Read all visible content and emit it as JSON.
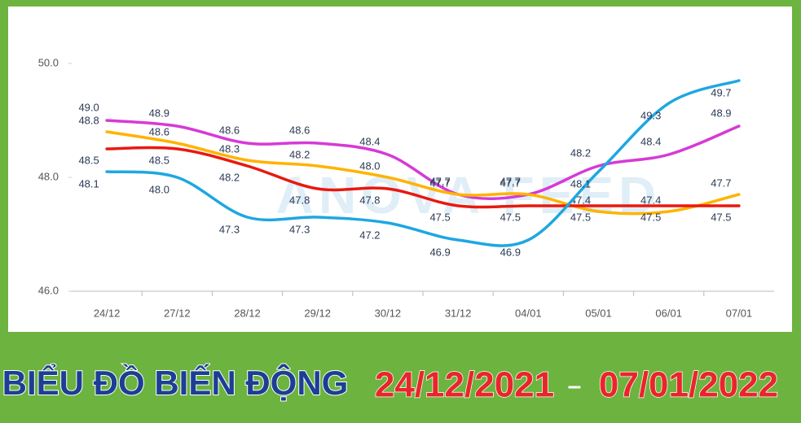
{
  "chart_data": {
    "type": "line",
    "categories": [
      "24/12",
      "27/12",
      "28/12",
      "29/12",
      "30/12",
      "31/12",
      "04/01",
      "05/01",
      "06/01",
      "07/01"
    ],
    "series": [
      {
        "color": "#d63ad6",
        "values": [
          49.0,
          48.9,
          48.6,
          48.6,
          48.4,
          47.7,
          47.7,
          48.2,
          48.4,
          48.9
        ],
        "value_labels": [
          "49.0",
          "48.9",
          "48.6",
          "48.6",
          "48.4",
          "47.7",
          "47.7",
          "48.2",
          "48.4",
          "48.9"
        ]
      },
      {
        "color": "#ffb300",
        "values": [
          48.8,
          48.6,
          48.3,
          48.2,
          48.0,
          47.7,
          47.7,
          47.4,
          47.4,
          47.7
        ],
        "value_labels": [
          "48.8",
          "48.6",
          "48.3",
          "48.2",
          "48.0",
          "47.7",
          "47.7",
          "47.4",
          "47.4",
          "47.7"
        ]
      },
      {
        "color": "#e8190f",
        "values": [
          48.5,
          48.5,
          48.2,
          47.8,
          47.8,
          47.5,
          47.5,
          47.5,
          47.5,
          47.5
        ],
        "value_labels": [
          "48.5",
          "48.5",
          "48.2",
          "47.8",
          "47.8",
          "47.5",
          "47.5",
          "47.5",
          "47.5",
          "47.5"
        ]
      },
      {
        "color": "#1ea7e1",
        "values": [
          48.1,
          48.0,
          47.3,
          47.3,
          47.2,
          46.9,
          46.9,
          48.1,
          49.3,
          49.7
        ],
        "value_labels": [
          "48.1",
          "48.0",
          "47.3",
          "47.3",
          "47.2",
          "46.9",
          "46.9",
          "48.1",
          "49.3",
          "49.7"
        ]
      }
    ],
    "ylim": [
      46,
      50
    ],
    "yticks": [
      {
        "value": 46,
        "label": "46.0"
      },
      {
        "value": 48,
        "label": "48.0"
      },
      {
        "value": 50,
        "label": "50.0"
      }
    ],
    "watermark": "ANOVA FEED"
  },
  "banner": {
    "title": "BIỂU ĐỒ BIẾN ĐỘNG",
    "date_from": "24/12/2021",
    "separator": "–",
    "date_to": "07/01/2022"
  }
}
